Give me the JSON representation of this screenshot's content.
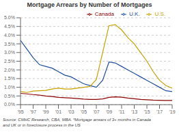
{
  "chart_data": {
    "type": "line",
    "title": "Mortgage Arrears by Number of Mortgages",
    "annotation": "Source: CMHC Research, CBA, MBA.  *Mortgage arrears of 3+ months in Canada\nand UK or in foreclosure process in the US",
    "x": [
      1995,
      1996,
      1997,
      1998,
      1999,
      2000,
      2001,
      2002,
      2003,
      2004,
      2005,
      2006,
      2007,
      2008,
      2009,
      2010,
      2011,
      2012,
      2013,
      2014,
      2015,
      2016,
      2017,
      2018,
      2019
    ],
    "series": [
      {
        "name": "Canada",
        "color": "#8b0000",
        "values": [
          0.65,
          0.62,
          0.58,
          0.55,
          0.5,
          0.47,
          0.42,
          0.4,
          0.38,
          0.35,
          0.32,
          0.3,
          0.3,
          0.33,
          0.42,
          0.45,
          0.43,
          0.38,
          0.34,
          0.3,
          0.28,
          0.26,
          0.25,
          0.24,
          0.24
        ]
      },
      {
        "name": "U.K.",
        "color": "#1f4e9e",
        "values": [
          3.7,
          3.2,
          2.7,
          2.3,
          2.2,
          2.1,
          1.9,
          1.7,
          1.6,
          1.4,
          1.2,
          1.1,
          1.0,
          1.4,
          2.45,
          2.4,
          2.2,
          2.0,
          1.8,
          1.6,
          1.4,
          1.2,
          1.0,
          0.8,
          0.75
        ]
      },
      {
        "name": "U.S.",
        "color": "#c8a000",
        "values": [
          0.75,
          0.7,
          0.78,
          0.8,
          0.82,
          0.9,
          0.95,
          0.9,
          0.9,
          0.95,
          1.0,
          1.05,
          1.45,
          3.0,
          4.55,
          4.6,
          4.3,
          3.85,
          3.5,
          3.0,
          2.5,
          1.9,
          1.4,
          1.1,
          0.95
        ]
      }
    ],
    "xlim": [
      1995,
      2019
    ],
    "xticks": [
      {
        "value": 1995,
        "label": "'95"
      },
      {
        "value": 1997,
        "label": "'97"
      },
      {
        "value": 1999,
        "label": "'99"
      },
      {
        "value": 2001,
        "label": "'01"
      },
      {
        "value": 2003,
        "label": "'03"
      },
      {
        "value": 2005,
        "label": "'05"
      },
      {
        "value": 2007,
        "label": "'07"
      },
      {
        "value": 2009,
        "label": "'09"
      },
      {
        "value": 2011,
        "label": "'11"
      },
      {
        "value": 2013,
        "label": "'13"
      },
      {
        "value": 2015,
        "label": "'15"
      },
      {
        "value": 2017,
        "label": "'17"
      },
      {
        "value": 2019,
        "label": "'19"
      }
    ],
    "ylim": [
      0.0,
      5.0
    ],
    "yticks": [
      {
        "value": 0.0,
        "label": "0.0%"
      },
      {
        "value": 0.5,
        "label": "0.5%"
      },
      {
        "value": 1.0,
        "label": "1.0%"
      },
      {
        "value": 1.5,
        "label": "1.5%"
      },
      {
        "value": 2.0,
        "label": "2.0%"
      },
      {
        "value": 2.5,
        "label": "2.5%"
      },
      {
        "value": 3.0,
        "label": "3.0%"
      },
      {
        "value": 3.5,
        "label": "3.5%"
      },
      {
        "value": 4.0,
        "label": "4.0%"
      },
      {
        "value": 4.5,
        "label": "4.5%"
      },
      {
        "value": 5.0,
        "label": "5.0%"
      }
    ],
    "grid": true,
    "legend": "upper right"
  }
}
